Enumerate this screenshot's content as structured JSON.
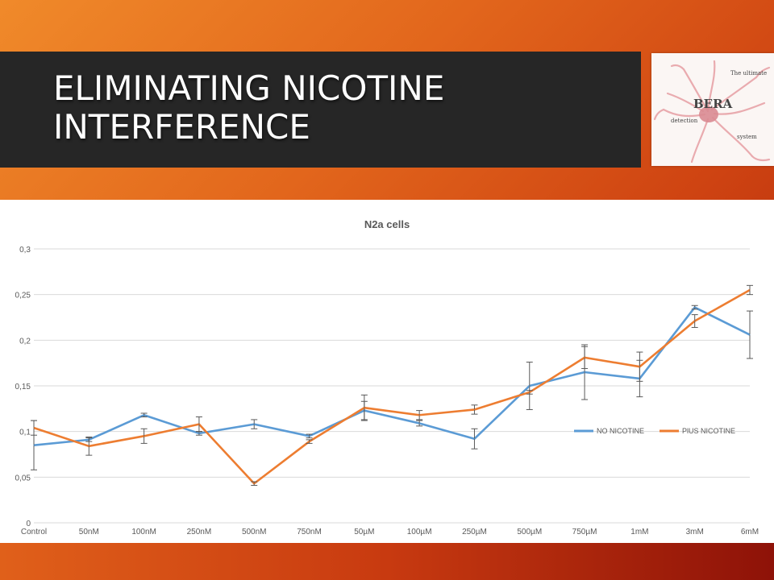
{
  "slide": {
    "title_line1": "ELIMINATING NICOTINE",
    "title_line2": "INTERFERENCE"
  },
  "logo": {
    "name": "BERA",
    "tagline_top": "The ultimate",
    "tagline_left": "detection",
    "tagline_right": "system"
  },
  "colors": {
    "no_nicotine": "#5b9bd5",
    "plus_nicotine": "#ed7d31",
    "background_gradient": "#e2661c",
    "title_bar": "#262626"
  },
  "chart_data": {
    "type": "line",
    "title": "N2a cells",
    "xlabel": "",
    "ylabel": "",
    "categories": [
      "Control",
      "50nM",
      "100nM",
      "250nM",
      "500nM",
      "750nM",
      "50µM",
      "100µM",
      "250µM",
      "500µM",
      "750µM",
      "1mM",
      "3mM",
      "6mM"
    ],
    "ylim": [
      0,
      0.3
    ],
    "yticks": [
      {
        "value": 0,
        "label": "0"
      },
      {
        "value": 0.05,
        "label": "0,05"
      },
      {
        "value": 0.1,
        "label": "0,1"
      },
      {
        "value": 0.15,
        "label": "0,15"
      },
      {
        "value": 0.2,
        "label": "0,2"
      },
      {
        "value": 0.25,
        "label": "0,25"
      },
      {
        "value": 0.3,
        "label": "0,3"
      }
    ],
    "grid": true,
    "legend_position": "right",
    "series": [
      {
        "name": "NO NICOTINE",
        "color": "#5b9bd5",
        "values": [
          0.085,
          0.091,
          0.118,
          0.098,
          0.108,
          0.095,
          0.123,
          0.109,
          0.092,
          0.15,
          0.165,
          0.158,
          0.236,
          0.206
        ],
        "errors": [
          0.027,
          0.002,
          0.002,
          0.002,
          0.005,
          0.002,
          0.01,
          0.003,
          0.011,
          0.026,
          0.03,
          0.02,
          0.002,
          0.026
        ]
      },
      {
        "name": "PlUS NICOTINE",
        "color": "#ed7d31",
        "values": [
          0.104,
          0.084,
          0.095,
          0.108,
          0.043,
          0.089,
          0.126,
          0.118,
          0.124,
          0.143,
          0.181,
          0.171,
          0.221,
          0.255
        ],
        "errors": [
          0.008,
          0.01,
          0.008,
          0.008,
          0.002,
          0.002,
          0.014,
          0.005,
          0.005,
          0.002,
          0.012,
          0.016,
          0.007,
          0.005
        ]
      }
    ]
  }
}
